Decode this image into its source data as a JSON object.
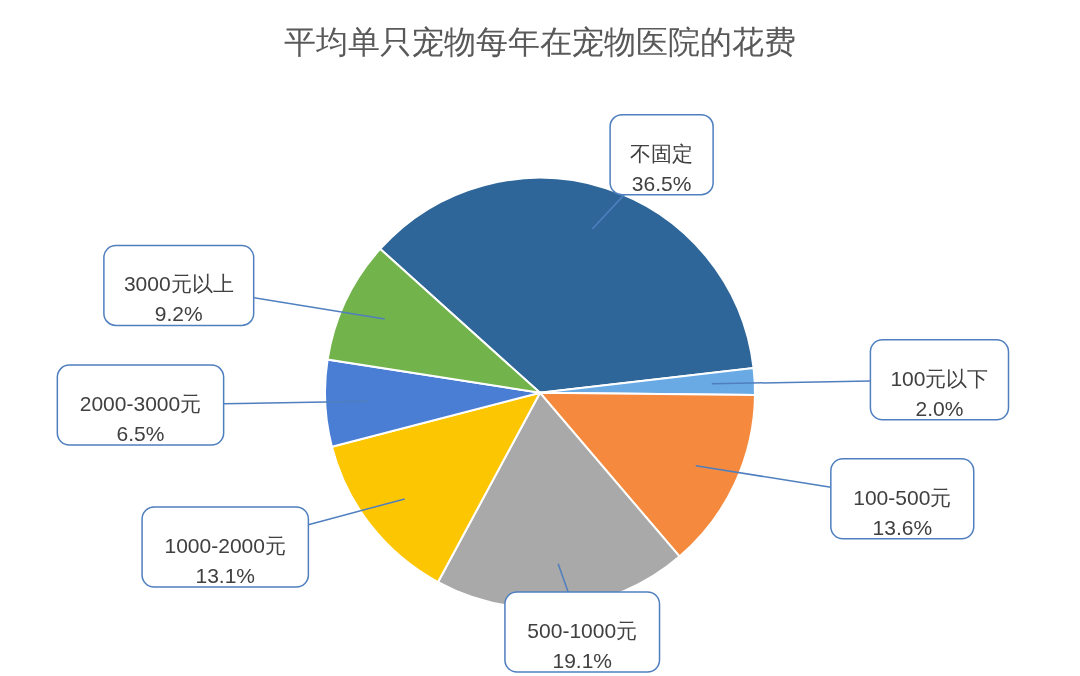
{
  "chart_data": {
    "type": "pie",
    "title": "平均单只宠物每年在宠物医院的花费",
    "categories": [
      "不固定",
      "100元以下",
      "100-500元",
      "500-1000元",
      "1000-2000元",
      "2000-3000元",
      "3000元以上"
    ],
    "values": [
      36.5,
      2.0,
      13.6,
      19.1,
      13.1,
      6.5,
      9.2
    ],
    "colors": [
      "#2e6699",
      "#6aaae4",
      "#f58a3e",
      "#a9a9a9",
      "#fdc602",
      "#4a7dd4",
      "#72b34c"
    ],
    "value_labels": [
      "36.5%",
      "2.0%",
      "13.6%",
      "19.1%",
      "13.1%",
      "6.5%",
      "9.2%"
    ]
  }
}
